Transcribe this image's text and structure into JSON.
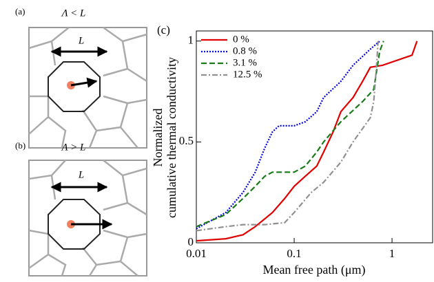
{
  "panels": [
    {
      "label": "(a)",
      "condition": "Λ < L",
      "length": "L"
    },
    {
      "label": "(b)",
      "condition": "Λ > L",
      "length": "L"
    }
  ],
  "chart_data": {
    "type": "line",
    "panel_label": "(c)",
    "xlabel": "Mean free path (μm)",
    "ylabel": [
      "Normalized",
      "cumulative thermal conductivity"
    ],
    "xscale": "log",
    "xlim": [
      0.01,
      2.6
    ],
    "xticks": [
      0.01,
      0.1,
      1
    ],
    "ylim": [
      0,
      1.05
    ],
    "yticks": [
      0,
      0.5,
      1
    ],
    "legend": "upper left",
    "series": [
      {
        "name": "0 %",
        "color": "#e00000",
        "dash": "solid",
        "x": [
          0.01,
          0.02,
          0.03,
          0.04,
          0.06,
          0.08,
          0.1,
          0.13,
          0.17,
          0.2,
          0.25,
          0.3,
          0.4,
          0.5,
          0.6,
          0.8,
          1.6,
          1.8
        ],
        "values": [
          0.01,
          0.02,
          0.04,
          0.08,
          0.15,
          0.22,
          0.28,
          0.33,
          0.38,
          0.45,
          0.55,
          0.65,
          0.72,
          0.8,
          0.87,
          0.88,
          0.93,
          1.0
        ]
      },
      {
        "name": "0.8 %",
        "color": "#0000e0",
        "dash": "dotted",
        "x": [
          0.01,
          0.02,
          0.03,
          0.04,
          0.05,
          0.06,
          0.07,
          0.1,
          0.13,
          0.17,
          0.2,
          0.3,
          0.4,
          0.6,
          0.75
        ],
        "values": [
          0.07,
          0.15,
          0.25,
          0.35,
          0.47,
          0.55,
          0.58,
          0.58,
          0.6,
          0.65,
          0.72,
          0.8,
          0.88,
          0.96,
          1.0
        ]
      },
      {
        "name": "3.1 %",
        "color": "#1a7a1a",
        "dash": "dashed",
        "x": [
          0.01,
          0.02,
          0.03,
          0.04,
          0.05,
          0.06,
          0.1,
          0.13,
          0.17,
          0.2,
          0.3,
          0.5,
          0.65,
          0.75,
          0.82
        ],
        "values": [
          0.08,
          0.14,
          0.22,
          0.28,
          0.33,
          0.35,
          0.35,
          0.38,
          0.45,
          0.5,
          0.6,
          0.7,
          0.76,
          0.95,
          1.0
        ]
      },
      {
        "name": "12.5 %",
        "color": "#909090",
        "dash": "dashdot",
        "x": [
          0.01,
          0.02,
          0.03,
          0.05,
          0.08,
          0.1,
          0.15,
          0.2,
          0.3,
          0.4,
          0.6,
          0.65,
          0.7,
          0.72
        ],
        "values": [
          0.06,
          0.08,
          0.09,
          0.09,
          0.1,
          0.15,
          0.25,
          0.3,
          0.4,
          0.5,
          0.62,
          0.7,
          0.9,
          1.0
        ]
      }
    ]
  }
}
